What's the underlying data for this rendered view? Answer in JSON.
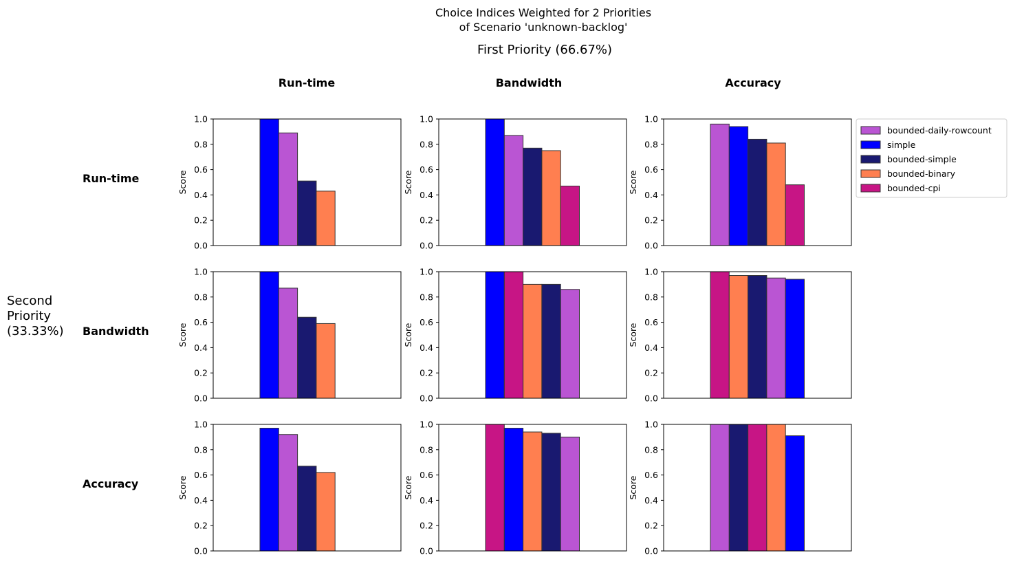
{
  "title_lines": [
    "Choice Indices Weighted for 2 Priorities",
    "of Scenario 'unknown-backlog'"
  ],
  "first_priority_label": "First Priority (66.67%)",
  "second_priority_lines": [
    "Second",
    "Priority",
    "(33.33%)"
  ],
  "column_titles": [
    "Run-time",
    "Bandwidth",
    "Accuracy"
  ],
  "row_titles": [
    "Run-time",
    "Bandwidth",
    "Accuracy"
  ],
  "colors": {
    "bounded-daily-rowcount": "#ba55d3",
    "simple": "#0000ff",
    "bounded-simple": "#191970",
    "bounded-binary": "#ff7f50",
    "bounded-cpi": "#c71585"
  },
  "legend": [
    "bounded-daily-rowcount",
    "simple",
    "bounded-simple",
    "bounded-binary",
    "bounded-cpi"
  ],
  "chart_data": [
    {
      "type": "bar",
      "row": "Run-time",
      "col": "Run-time",
      "ylabel": "Score",
      "ylim": [
        0,
        1
      ],
      "categories": [
        "simple",
        "bounded-daily-rowcount",
        "bounded-simple",
        "bounded-binary",
        "bounded-cpi"
      ],
      "values": [
        1.0,
        0.89,
        0.51,
        0.43,
        0.0
      ]
    },
    {
      "type": "bar",
      "row": "Run-time",
      "col": "Bandwidth",
      "ylabel": "Score",
      "ylim": [
        0,
        1
      ],
      "categories": [
        "simple",
        "bounded-daily-rowcount",
        "bounded-simple",
        "bounded-binary",
        "bounded-cpi"
      ],
      "values": [
        1.0,
        0.87,
        0.77,
        0.75,
        0.47
      ]
    },
    {
      "type": "bar",
      "row": "Run-time",
      "col": "Accuracy",
      "ylabel": "Score",
      "ylim": [
        0,
        1
      ],
      "categories": [
        "bounded-daily-rowcount",
        "simple",
        "bounded-simple",
        "bounded-binary",
        "bounded-cpi"
      ],
      "values": [
        0.96,
        0.94,
        0.84,
        0.81,
        0.48
      ]
    },
    {
      "type": "bar",
      "row": "Bandwidth",
      "col": "Run-time",
      "ylabel": "Score",
      "ylim": [
        0,
        1
      ],
      "categories": [
        "simple",
        "bounded-daily-rowcount",
        "bounded-simple",
        "bounded-binary",
        "bounded-cpi"
      ],
      "values": [
        1.0,
        0.87,
        0.64,
        0.59,
        0.0
      ]
    },
    {
      "type": "bar",
      "row": "Bandwidth",
      "col": "Bandwidth",
      "ylabel": "Score",
      "ylim": [
        0,
        1
      ],
      "categories": [
        "simple",
        "bounded-cpi",
        "bounded-binary",
        "bounded-simple",
        "bounded-daily-rowcount"
      ],
      "values": [
        1.0,
        1.0,
        0.9,
        0.9,
        0.86
      ]
    },
    {
      "type": "bar",
      "row": "Bandwidth",
      "col": "Accuracy",
      "ylabel": "Score",
      "ylim": [
        0,
        1
      ],
      "categories": [
        "bounded-cpi",
        "bounded-binary",
        "bounded-simple",
        "bounded-daily-rowcount",
        "simple"
      ],
      "values": [
        1.0,
        0.97,
        0.97,
        0.95,
        0.94
      ]
    },
    {
      "type": "bar",
      "row": "Accuracy",
      "col": "Run-time",
      "ylabel": "Score",
      "ylim": [
        0,
        1
      ],
      "categories": [
        "simple",
        "bounded-daily-rowcount",
        "bounded-simple",
        "bounded-binary",
        "bounded-cpi"
      ],
      "values": [
        0.97,
        0.92,
        0.67,
        0.62,
        0.0
      ]
    },
    {
      "type": "bar",
      "row": "Accuracy",
      "col": "Bandwidth",
      "ylabel": "Score",
      "ylim": [
        0,
        1
      ],
      "categories": [
        "bounded-cpi",
        "simple",
        "bounded-binary",
        "bounded-simple",
        "bounded-daily-rowcount"
      ],
      "values": [
        1.0,
        0.97,
        0.94,
        0.93,
        0.9
      ]
    },
    {
      "type": "bar",
      "row": "Accuracy",
      "col": "Accuracy",
      "ylabel": "Score",
      "ylim": [
        0,
        1
      ],
      "categories": [
        "bounded-daily-rowcount",
        "bounded-simple",
        "bounded-cpi",
        "bounded-binary",
        "simple"
      ],
      "values": [
        1.0,
        1.0,
        1.0,
        1.0,
        0.91
      ]
    }
  ]
}
